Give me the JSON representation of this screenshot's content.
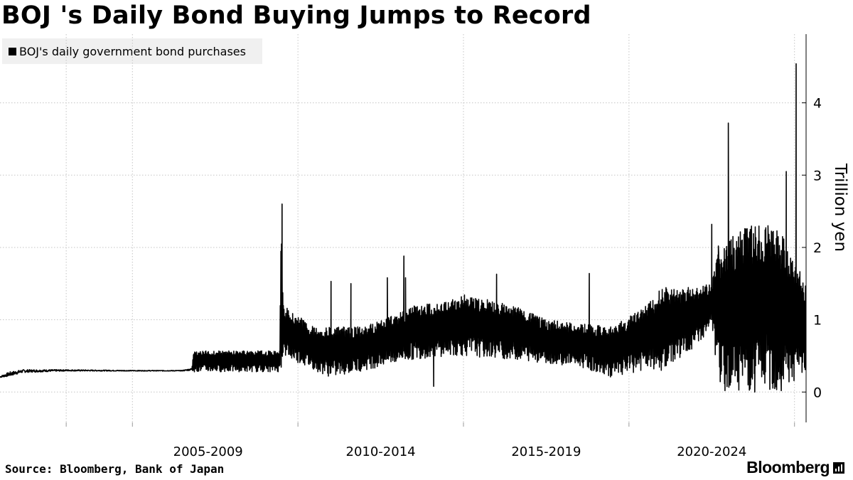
{
  "title": "BOJ 's Daily Bond Buying Jumps to Record",
  "legend": {
    "label": "BOJ's daily government bond purchases"
  },
  "source": "Source: Bloomberg, Bank of Japan",
  "brand": {
    "name": "Bloomberg",
    "icon": "bloomberg-terminal-icon"
  },
  "chart_data": {
    "type": "line",
    "title": "BOJ 's Daily Bond Buying Jumps to Record",
    "ylabel": "Trillion yen",
    "xlabel": "",
    "ylim": [
      -0.42,
      4.95
    ],
    "xlim": [
      2001.0,
      2025.35
    ],
    "yticks": [
      0,
      1,
      2,
      3,
      4
    ],
    "xtick_labels": [
      "2005-2009",
      "2010-2014",
      "2015-2019",
      "2020-2024"
    ],
    "grid": "dotted",
    "legend": "top-left",
    "line_color": "#000000",
    "series": [
      {
        "name": "BOJ's daily government bond purchases",
        "profile": [
          [
            2001.0,
            0.22,
            0.2
          ],
          [
            2001.3,
            0.28,
            0.22
          ],
          [
            2001.7,
            0.31,
            0.27
          ],
          [
            2003.0,
            0.31,
            0.29
          ],
          [
            2005.0,
            0.3,
            0.29
          ],
          [
            2006.5,
            0.3,
            0.29
          ],
          [
            2006.8,
            0.33,
            0.3
          ],
          [
            2006.85,
            0.57,
            0.28
          ],
          [
            2008.0,
            0.57,
            0.28
          ],
          [
            2009.45,
            0.57,
            0.28
          ],
          [
            2009.5,
            2.6,
            0.3
          ],
          [
            2009.55,
            1.2,
            0.5
          ],
          [
            2010.5,
            0.9,
            0.3
          ],
          [
            2011.0,
            0.9,
            0.2
          ],
          [
            2012.0,
            0.9,
            0.3
          ],
          [
            2013.5,
            1.2,
            0.45
          ],
          [
            2014.5,
            1.25,
            0.5
          ],
          [
            2015.0,
            1.35,
            0.5
          ],
          [
            2016.5,
            1.2,
            0.45
          ],
          [
            2017.5,
            1.0,
            0.4
          ],
          [
            2018.5,
            0.95,
            0.35
          ],
          [
            2019.5,
            0.9,
            0.2
          ],
          [
            2020.5,
            1.2,
            0.3
          ],
          [
            2021.0,
            1.45,
            0.3
          ],
          [
            2022.0,
            1.45,
            0.6
          ],
          [
            2022.5,
            1.5,
            0.9
          ],
          [
            2022.7,
            2.0,
            0.1
          ],
          [
            2023.5,
            2.3,
            0.0
          ],
          [
            2024.5,
            2.3,
            0.0
          ],
          [
            2025.35,
            1.5,
            0.2
          ]
        ],
        "spikes": [
          [
            2009.52,
            2.6
          ],
          [
            2011.0,
            1.53
          ],
          [
            2011.6,
            1.5
          ],
          [
            2012.7,
            1.58
          ],
          [
            2013.2,
            1.88
          ],
          [
            2013.25,
            1.58
          ],
          [
            2014.1,
            0.08
          ],
          [
            2016.0,
            1.63
          ],
          [
            2018.8,
            1.64
          ],
          [
            2022.5,
            2.32
          ],
          [
            2022.7,
            2.02
          ],
          [
            2023.0,
            3.72
          ],
          [
            2023.5,
            2.26
          ],
          [
            2024.2,
            2.3
          ],
          [
            2024.75,
            3.05
          ],
          [
            2025.05,
            4.54
          ],
          [
            2022.9,
            0.02
          ],
          [
            2023.8,
            0.0
          ],
          [
            2024.6,
            0.02
          ]
        ]
      }
    ]
  }
}
